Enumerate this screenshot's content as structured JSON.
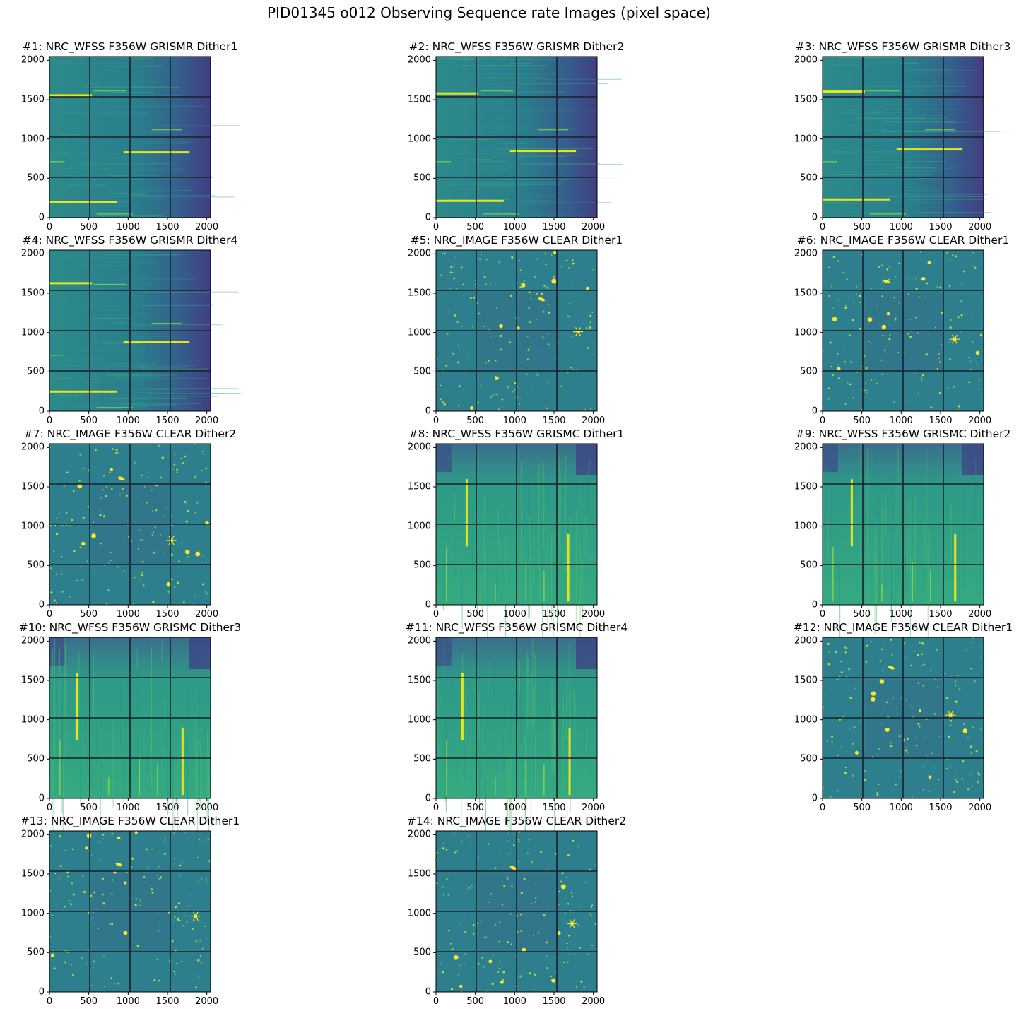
{
  "chart_data": {
    "type": "heatmap",
    "title": "PID01345 o012 Observing Sequence rate Images (pixel space)",
    "colormap": "viridis",
    "xlim": [
      0,
      2048
    ],
    "ylim": [
      0,
      2048
    ],
    "x_ticks": [
      "0",
      "500",
      "1000",
      "1500",
      "2000"
    ],
    "y_ticks": [
      "0",
      "500",
      "1000",
      "1500",
      "2000"
    ],
    "panels": [
      {
        "title": "#1: NRC_WFSS F356W GRISMR Dither1",
        "mode": "grismr",
        "dither": 1
      },
      {
        "title": "#2: NRC_WFSS F356W GRISMR Dither2",
        "mode": "grismr",
        "dither": 2
      },
      {
        "title": "#3: NRC_WFSS F356W GRISMR Dither3",
        "mode": "grismr",
        "dither": 3
      },
      {
        "title": "#4: NRC_WFSS F356W GRISMR Dither4",
        "mode": "grismr",
        "dither": 4
      },
      {
        "title": "#5: NRC_IMAGE F356W CLEAR Dither1",
        "mode": "image",
        "dither": 1
      },
      {
        "title": "#6: NRC_IMAGE F356W CLEAR Dither1",
        "mode": "image",
        "dither": 1
      },
      {
        "title": "#7: NRC_IMAGE F356W CLEAR Dither2",
        "mode": "image",
        "dither": 2
      },
      {
        "title": "#8: NRC_WFSS F356W GRISMC Dither1",
        "mode": "grismc",
        "dither": 1
      },
      {
        "title": "#9: NRC_WFSS F356W GRISMC Dither2",
        "mode": "grismc",
        "dither": 2
      },
      {
        "title": "#10: NRC_WFSS F356W GRISMC Dither3",
        "mode": "grismc",
        "dither": 3
      },
      {
        "title": "#11: NRC_WFSS F356W GRISMC Dither4",
        "mode": "grismc",
        "dither": 4
      },
      {
        "title": "#12: NRC_IMAGE F356W CLEAR Dither1",
        "mode": "image",
        "dither": 1
      },
      {
        "title": "#13: NRC_IMAGE F356W CLEAR Dither1",
        "mode": "image",
        "dither": 1
      },
      {
        "title": "#14: NRC_IMAGE F356W CLEAR Dither2",
        "mode": "image",
        "dither": 2
      }
    ]
  }
}
